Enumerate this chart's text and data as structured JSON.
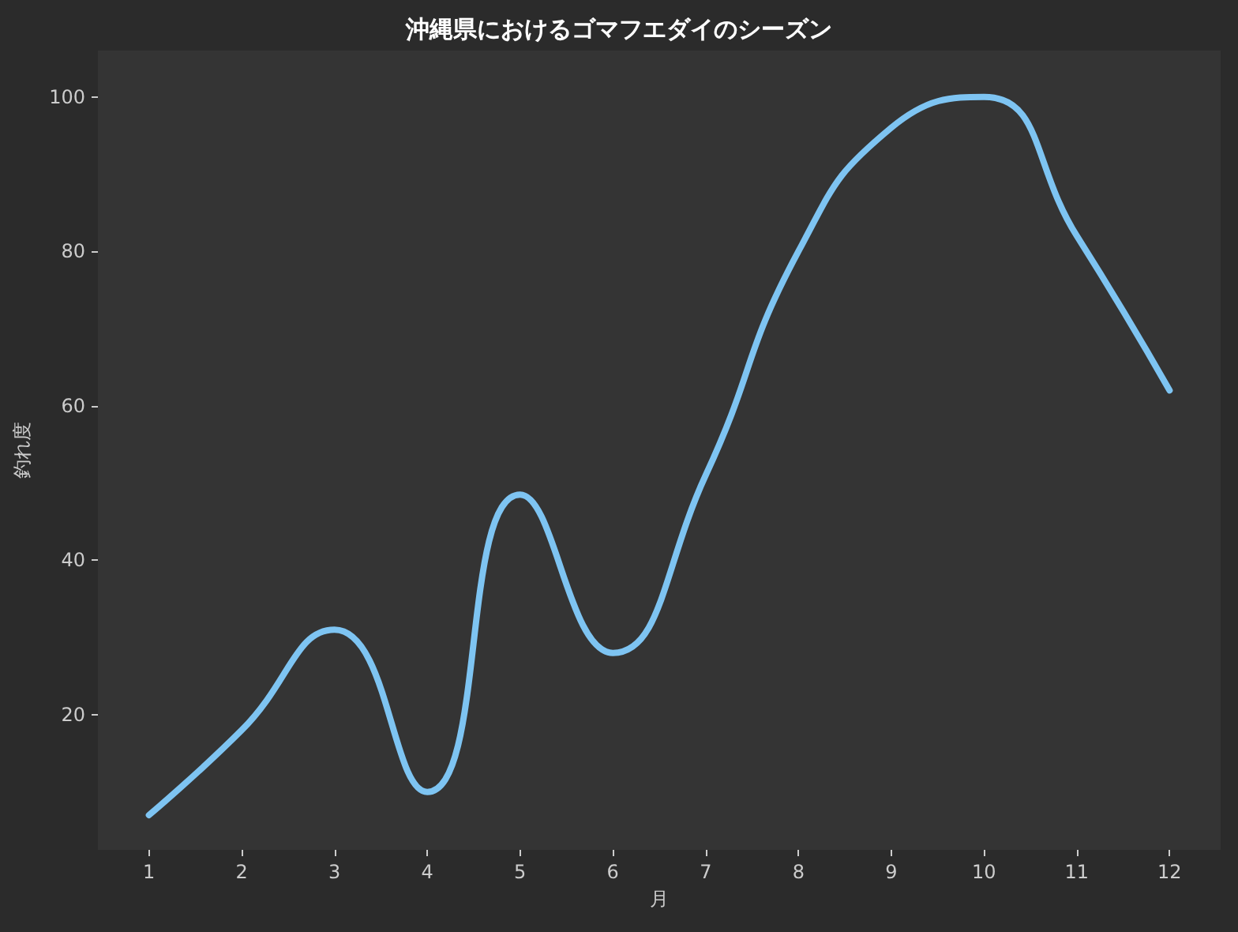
{
  "chart_data": {
    "type": "line",
    "title": "沖縄県におけるゴマフエダイのシーズン",
    "xlabel": "月",
    "ylabel": "釣れ度",
    "x": [
      1,
      2,
      3,
      4,
      5,
      6,
      7,
      8,
      9,
      10,
      11,
      12
    ],
    "series": [
      {
        "color": "#7ec4f2",
        "values": [
          7,
          18,
          31,
          10,
          48.5,
          28,
          51,
          80,
          96,
          100,
          82,
          62
        ]
      }
    ],
    "xlim": [
      0.45,
      12.55
    ],
    "xticks": [
      1,
      2,
      3,
      4,
      5,
      6,
      7,
      8,
      9,
      10,
      11,
      12
    ],
    "ylim": [
      2.5,
      106
    ],
    "yticks": [
      20,
      40,
      60,
      80,
      100
    ],
    "grid": false,
    "marker": "none",
    "line_style": "solid"
  }
}
